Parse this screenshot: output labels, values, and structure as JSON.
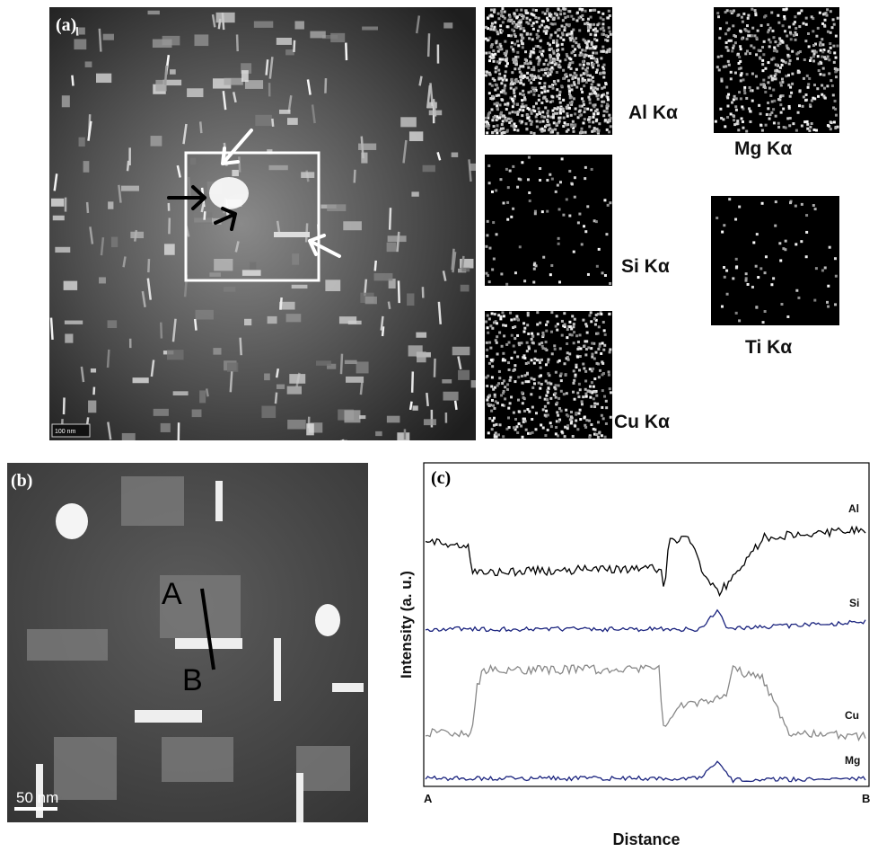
{
  "panels": {
    "a": {
      "label": "(a)",
      "scale_bar": "100 nm",
      "maps": [
        {
          "label": "Al Kα"
        },
        {
          "label": "Mg Kα"
        },
        {
          "label": "Si Kα"
        },
        {
          "label": "Ti Kα"
        },
        {
          "label": "Cu Kα"
        }
      ]
    },
    "b": {
      "label": "(b)",
      "start": "A",
      "end": "B",
      "scale_bar": "50 nm"
    },
    "c": {
      "label": "(c)",
      "y_label": "Intensity (a. u.)",
      "x_label": "Distance",
      "start": "A",
      "end": "B",
      "traces": [
        {
          "name": "Al"
        },
        {
          "name": "Si"
        },
        {
          "name": "Cu"
        },
        {
          "name": "Mg"
        }
      ]
    }
  }
}
